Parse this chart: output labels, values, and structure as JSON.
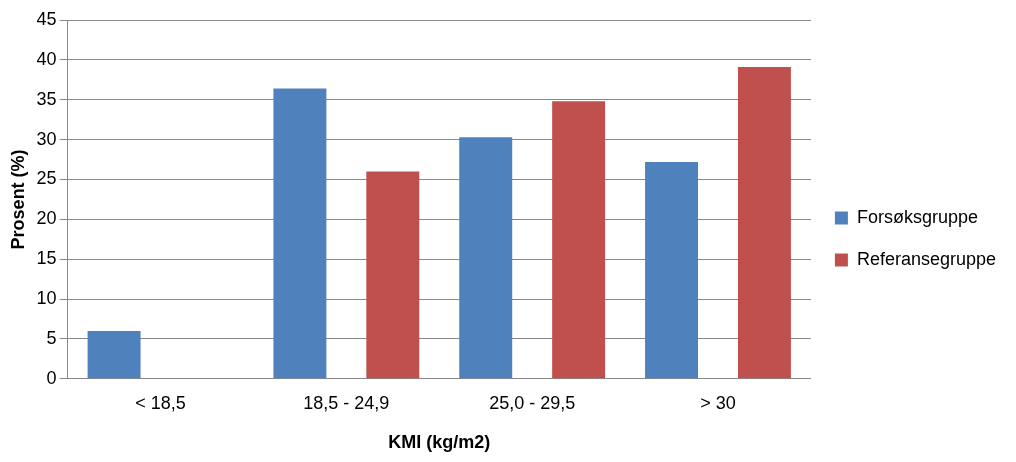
{
  "chart_data": {
    "type": "bar",
    "xlabel": "KMI (kg/m2)",
    "ylabel": "Prosent (%)",
    "categories": [
      "< 18,5",
      "18,5 - 24,9",
      "25,0 - 29,5",
      "> 30"
    ],
    "series": [
      {
        "name": "Forsøksgruppe",
        "color": "#4f81bd",
        "values": [
          6.0,
          36.4,
          30.3,
          27.2
        ]
      },
      {
        "name": "Referansegruppe",
        "color": "#c0504d",
        "values": [
          0,
          26.0,
          34.8,
          39.1
        ]
      }
    ],
    "ylim": [
      0,
      45
    ],
    "yticks": [
      0,
      5,
      10,
      15,
      20,
      25,
      30,
      35,
      40,
      45
    ],
    "grid": "y",
    "legend": "right"
  }
}
